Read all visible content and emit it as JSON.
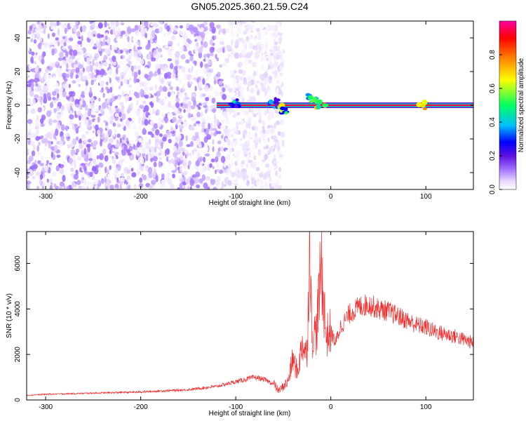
{
  "title": "GN05.2025.360.21.59.C24",
  "spectrogram": {
    "ylabel": "Frequency (Hz)",
    "xlabel": "Height of straight line (km)",
    "colorbar_label": "Normalized spectral amplitude"
  },
  "snr_plot": {
    "ylabel": "SNR (10 * v/v)",
    "xlabel": "Height of straight line (km)"
  },
  "chart_data": [
    {
      "type": "heatmap",
      "title": "GN05.2025.360.21.59.C24",
      "xlabel": "Height of straight line (km)",
      "ylabel": "Frequency (Hz)",
      "xlim": [
        -320,
        150
      ],
      "ylim": [
        -50,
        50
      ],
      "x_ticks": [
        -300,
        -200,
        -100,
        0,
        100
      ],
      "y_ticks": [
        -40,
        -20,
        0,
        20,
        40
      ],
      "colorbar": {
        "label": "Normalized spectral amplitude",
        "range": [
          0.0,
          1.0
        ],
        "ticks": [
          0.0,
          0.2,
          0.4,
          0.6,
          0.8
        ],
        "colormap": [
          "#ffffff",
          "#e8d8ff",
          "#a070ff",
          "#6010e0",
          "#0000ff",
          "#00c0ff",
          "#00ff60",
          "#ffff00",
          "#ff8000",
          "#ff0000",
          "#ff00a0"
        ]
      },
      "features": {
        "broadband_noise_x_range": [
          -320,
          -50
        ],
        "main_tone_x_range": [
          -120,
          150
        ],
        "main_tone_frequency_hz": 0,
        "main_tone_amplitude": 0.95,
        "bursts": [
          {
            "x": -100,
            "y": 1,
            "amp": 0.5
          },
          {
            "x": -60,
            "y": 1,
            "amp": 0.45
          },
          {
            "x": -50,
            "y": -2,
            "amp": 0.6
          },
          {
            "x": -20,
            "y": 4,
            "amp": 0.55
          },
          {
            "x": -10,
            "y": 1,
            "amp": 0.7
          },
          {
            "x": 97,
            "y": 0,
            "amp": 0.8
          }
        ]
      }
    },
    {
      "type": "line",
      "xlabel": "Height of straight line (km)",
      "ylabel": "SNR (10 * v/v)",
      "xlim": [
        -320,
        150
      ],
      "ylim": [
        0,
        7400
      ],
      "x_ticks": [
        -300,
        -200,
        -100,
        0,
        100
      ],
      "y_ticks": [
        0,
        2000,
        4000,
        6000
      ],
      "series": [
        {
          "color": "#f03030",
          "x": [
            -320,
            -300,
            -250,
            -200,
            -150,
            -120,
            -100,
            -80,
            -70,
            -60,
            -55,
            -50,
            -45,
            -40,
            -35,
            -30,
            -25,
            -22,
            -20,
            -15,
            -10,
            -5,
            0,
            5,
            10,
            20,
            30,
            40,
            50,
            60,
            70,
            80,
            90,
            100,
            110,
            120,
            130,
            140,
            150
          ],
          "y": [
            200,
            250,
            300,
            350,
            450,
            600,
            800,
            1000,
            900,
            700,
            400,
            600,
            800,
            1800,
            1200,
            2500,
            2000,
            7300,
            2800,
            3000,
            6000,
            2800,
            3000,
            2500,
            3200,
            3800,
            4100,
            4200,
            4000,
            3900,
            3700,
            3500,
            3300,
            3200,
            3000,
            2900,
            2800,
            2650,
            2500
          ],
          "noise_amplitude_fraction": 0.12,
          "sample_count": 1400
        }
      ]
    }
  ]
}
